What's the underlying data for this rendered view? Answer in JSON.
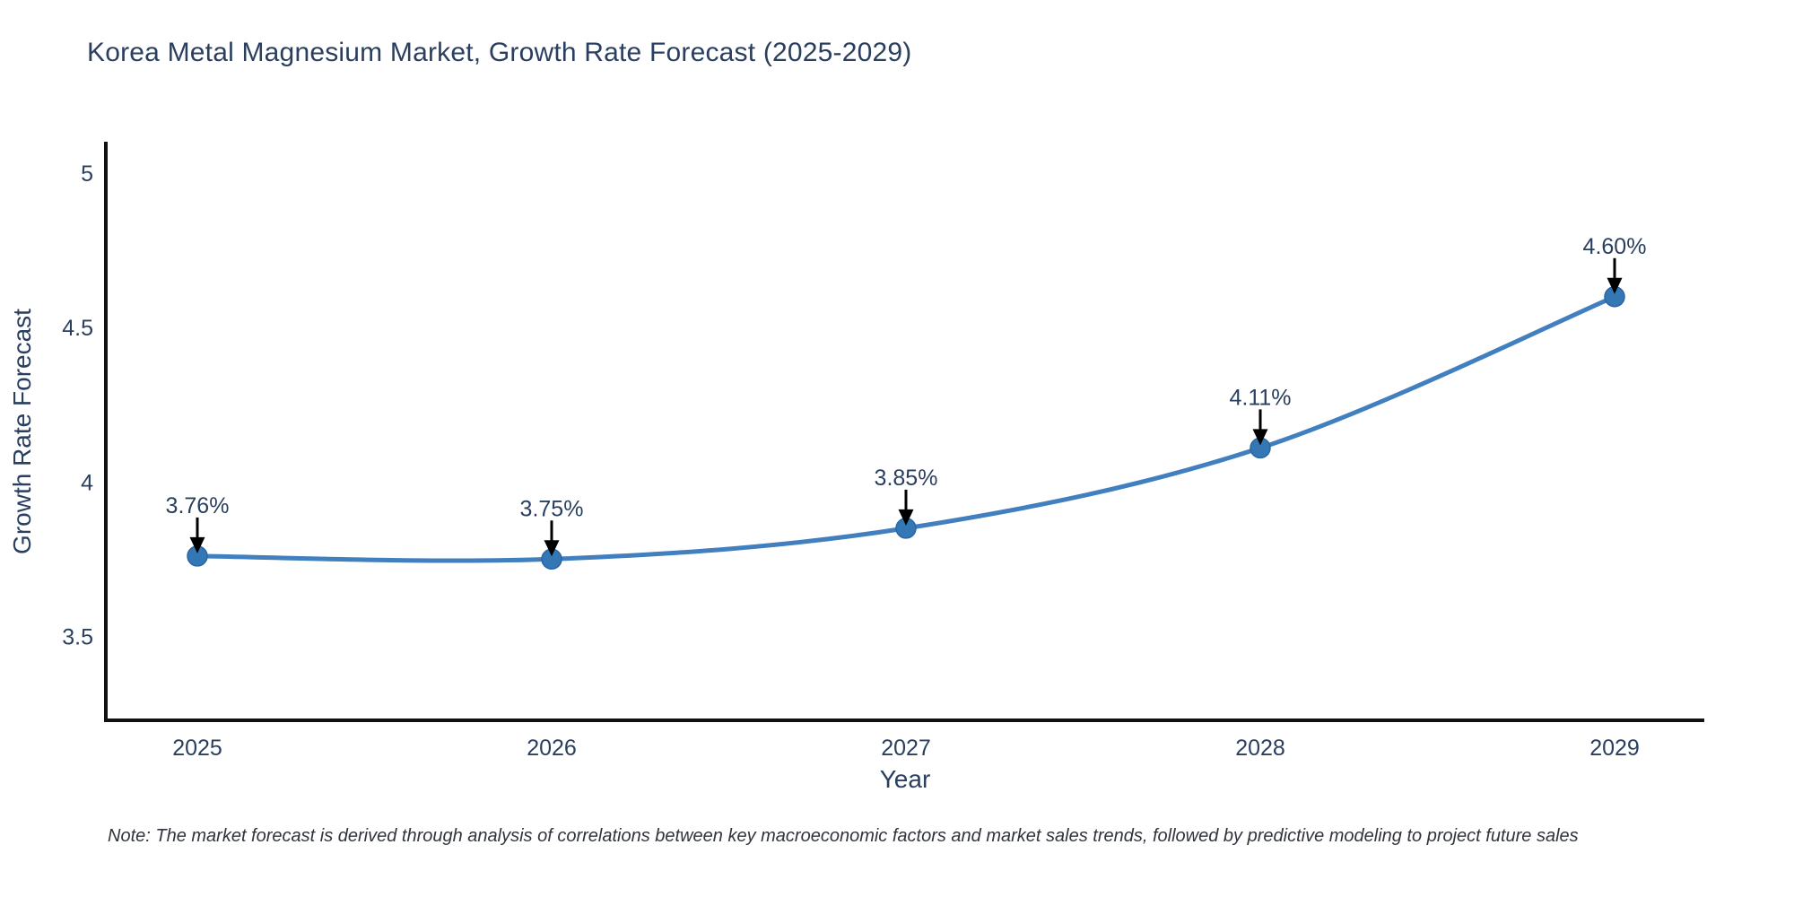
{
  "note": "Note: The market forecast is derived through analysis of correlations between key macroeconomic factors and market sales trends, followed by predictive modeling to project future sales",
  "chart_data": {
    "type": "line",
    "title": "Korea Metal Magnesium Market, Growth Rate Forecast (2025-2029)",
    "categories": [
      "2025",
      "2026",
      "2027",
      "2028",
      "2029"
    ],
    "values": [
      3.76,
      3.75,
      3.85,
      4.11,
      4.6
    ],
    "point_labels": [
      "3.76%",
      "3.75%",
      "3.85%",
      "4.11%",
      "4.60%"
    ],
    "series_name": "Growth Rate Forecast",
    "xlabel": "Year",
    "ylabel": "Growth Rate Forecast",
    "yticks": [
      {
        "value": 5,
        "label": "5"
      },
      {
        "value": 4.5,
        "label": "4.5"
      },
      {
        "value": 4,
        "label": "4"
      },
      {
        "value": 3.5,
        "label": "3.5"
      }
    ],
    "ylim": [
      3.228,
      5.102
    ],
    "grid": false,
    "legend": null,
    "line_shape": "spline",
    "annotation_style": "value-label-with-down-arrow",
    "colors": {
      "line": "#417fbf",
      "marker": "#3377b4",
      "marker_edge": "#2b66a3",
      "arrow": "#000000",
      "axis": "#111111",
      "text": "#2a3f5f",
      "note_text": "#31343c",
      "background": "#ffffff"
    }
  }
}
